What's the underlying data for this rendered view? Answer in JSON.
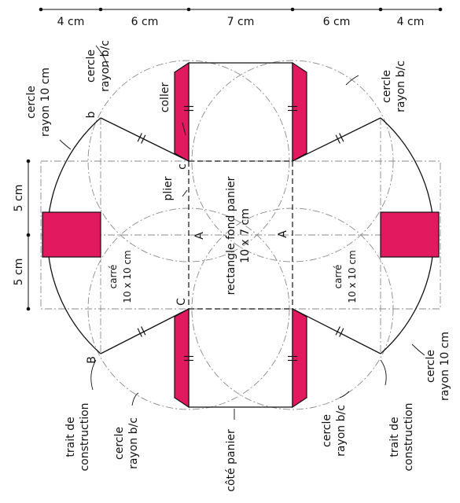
{
  "colors": {
    "glue_fill": "#e2195f",
    "line": "#111111",
    "construction": "#8a8a8a"
  },
  "dimensions": {
    "top_widths": [
      "4 cm",
      "6 cm",
      "7 cm",
      "6 cm",
      "4 cm"
    ],
    "left_heights": [
      "5 cm",
      "5 cm"
    ]
  },
  "labels": {
    "circle_10_left_l1": "cercle",
    "circle_10_left_l2": "rayon 10 cm",
    "circle_bc_top_left_l1": "cercle",
    "circle_bc_top_left_l2": "rayon b/c",
    "glue": "coller",
    "circle_bc_top_right_l1": "cercle",
    "circle_bc_top_right_l2": "rayon b/c",
    "point_b": "b",
    "point_c": "c",
    "point_B": "B",
    "point_C": "C",
    "point_A_left": "A",
    "point_A_right": "A",
    "fold": "plier",
    "base_rect_l1": "rectangle fond panier",
    "base_rect_l2": "10 x 7 cm",
    "square_left_l1": "carré",
    "square_left_l2": "10 x 10 cm",
    "square_right_l1": "carré",
    "square_right_l2": "10 x 10 cm",
    "circle_10_right_l1": "cercle",
    "circle_10_right_l2": "rayon 10 cm",
    "construction_left_l1": "trait de",
    "construction_left_l2": "construction",
    "circle_bc_bottom_left_l1": "cercle",
    "circle_bc_bottom_left_l2": "rayon b/c",
    "basket_side": "côté panier",
    "circle_bc_bottom_right_l1": "cercle",
    "circle_bc_bottom_right_l2": "rayon b/c",
    "construction_right_l1": "trait de",
    "construction_right_l2": "construction"
  }
}
